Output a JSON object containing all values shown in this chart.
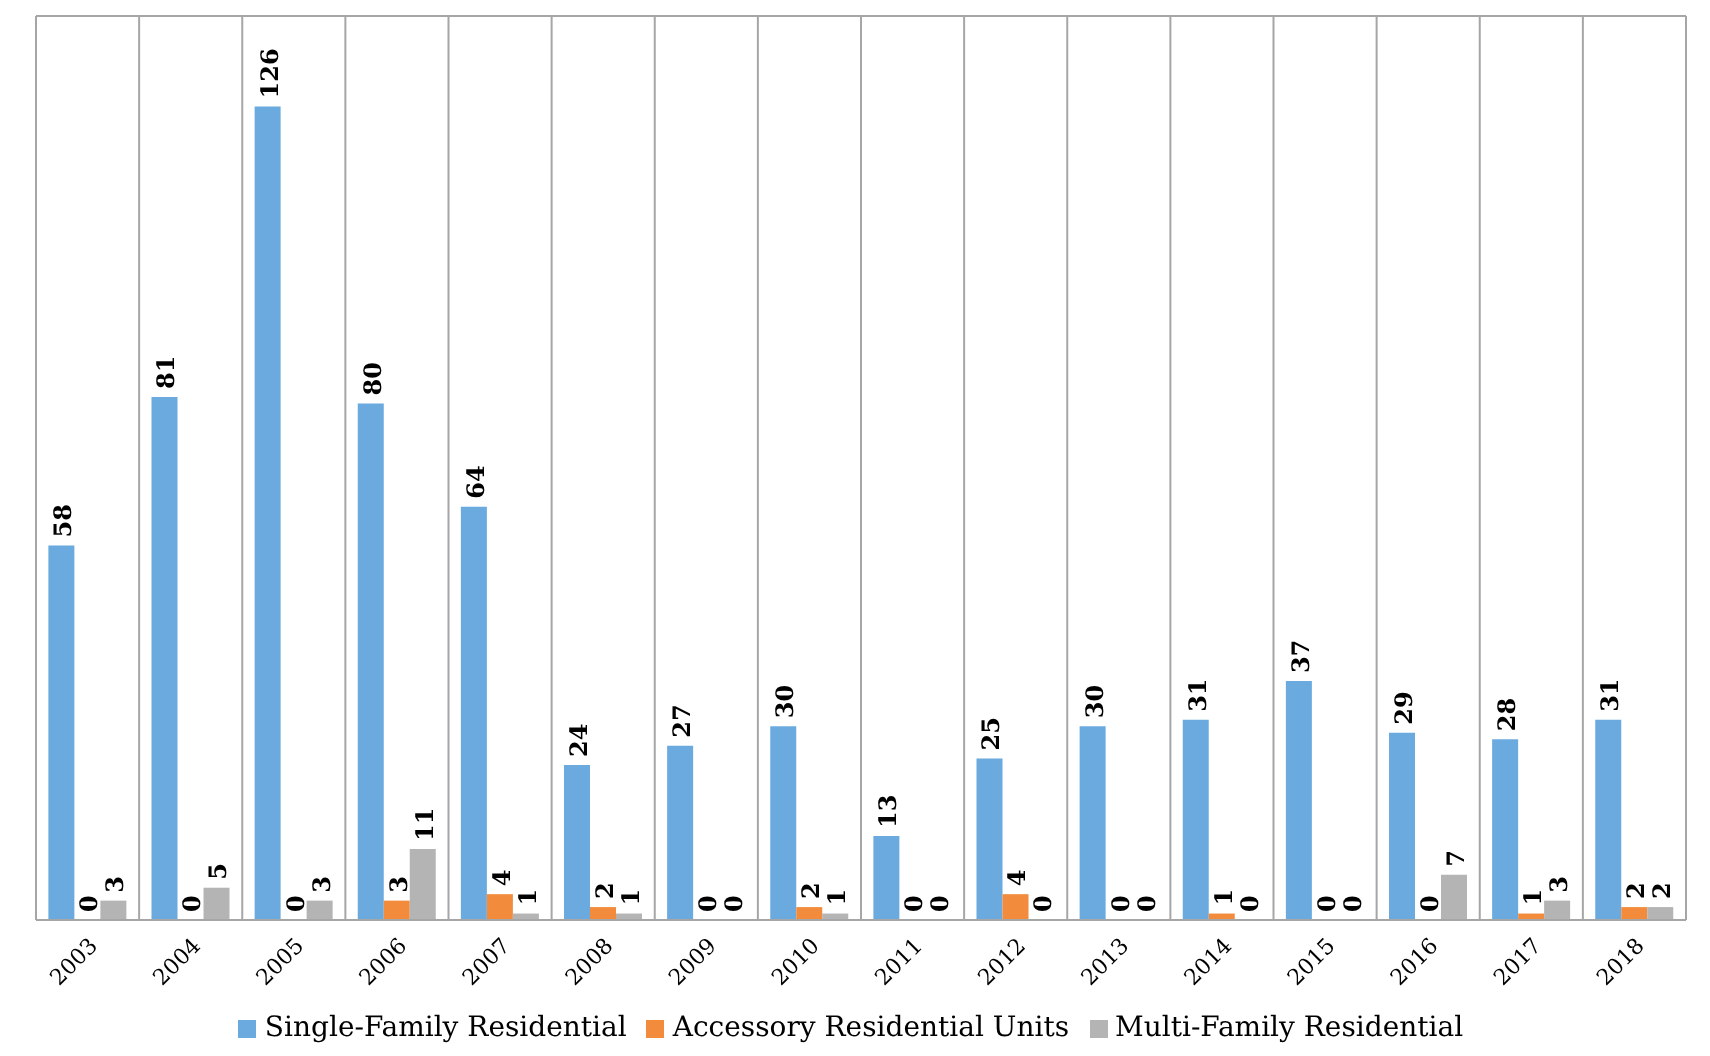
{
  "chart_data": {
    "type": "bar",
    "categories": [
      "2003",
      "2004",
      "2005",
      "2006",
      "2007",
      "2008",
      "2009",
      "2010",
      "2011",
      "2012",
      "2013",
      "2014",
      "2015",
      "2016",
      "2017",
      "2018"
    ],
    "series": [
      {
        "name": "Single-Family Residential",
        "color": "#6aaade",
        "values": [
          58,
          81,
          126,
          80,
          64,
          24,
          27,
          30,
          13,
          25,
          30,
          31,
          37,
          29,
          28,
          31
        ]
      },
      {
        "name": "Accessory Residential Units",
        "color": "#f38b3c",
        "values": [
          0,
          0,
          0,
          3,
          4,
          2,
          0,
          2,
          0,
          4,
          0,
          1,
          0,
          0,
          1,
          2
        ]
      },
      {
        "name": "Multi-Family Residential",
        "color": "#b4b4b4",
        "values": [
          3,
          5,
          3,
          11,
          1,
          1,
          0,
          1,
          0,
          0,
          0,
          0,
          0,
          7,
          3,
          2
        ]
      }
    ],
    "tick_labels": "x",
    "grid": true,
    "legend": "bottom",
    "data_labels": true
  }
}
